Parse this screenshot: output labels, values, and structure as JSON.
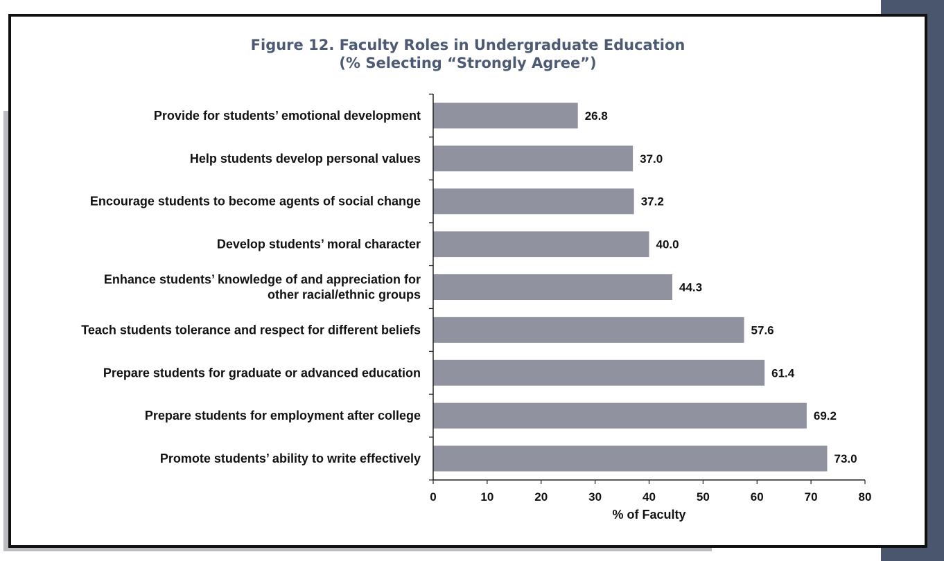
{
  "chart_data": {
    "type": "bar",
    "orientation": "horizontal",
    "title": "Figure 12. Faculty Roles in Undergraduate Education",
    "subtitle": "(% Selecting “Strongly Agree”)",
    "xlabel": "% of Faculty",
    "ylabel": "",
    "xlim": [
      0,
      80
    ],
    "xticks": [
      "0",
      "10",
      "20",
      "30",
      "40",
      "50",
      "60",
      "70",
      "80"
    ],
    "grid": false,
    "bar_color": "#9092a0",
    "categories": [
      [
        "Provide for students’ emotional development"
      ],
      [
        "Help students develop personal values"
      ],
      [
        "Encourage students to become agents of social change"
      ],
      [
        "Develop students’ moral character"
      ],
      [
        "Enhance students’ knowledge of and appreciation for",
        "other racial/ethnic groups"
      ],
      [
        "Teach students tolerance and respect for different beliefs"
      ],
      [
        "Prepare students for graduate or advanced education"
      ],
      [
        "Prepare students for employment after college"
      ],
      [
        "Promote students’ ability to write effectively"
      ]
    ],
    "values": [
      26.8,
      37.0,
      37.2,
      40.0,
      44.3,
      57.6,
      61.4,
      69.2,
      73.0
    ],
    "value_labels": [
      "26.8",
      "37.0",
      "37.2",
      "40.0",
      "44.3",
      "57.6",
      "61.4",
      "69.2",
      "73.0"
    ]
  },
  "colors": {
    "title": "#4c5a74",
    "side_band": "#4a566e",
    "frame": "#111111",
    "shadow": "#bcbcc0"
  }
}
